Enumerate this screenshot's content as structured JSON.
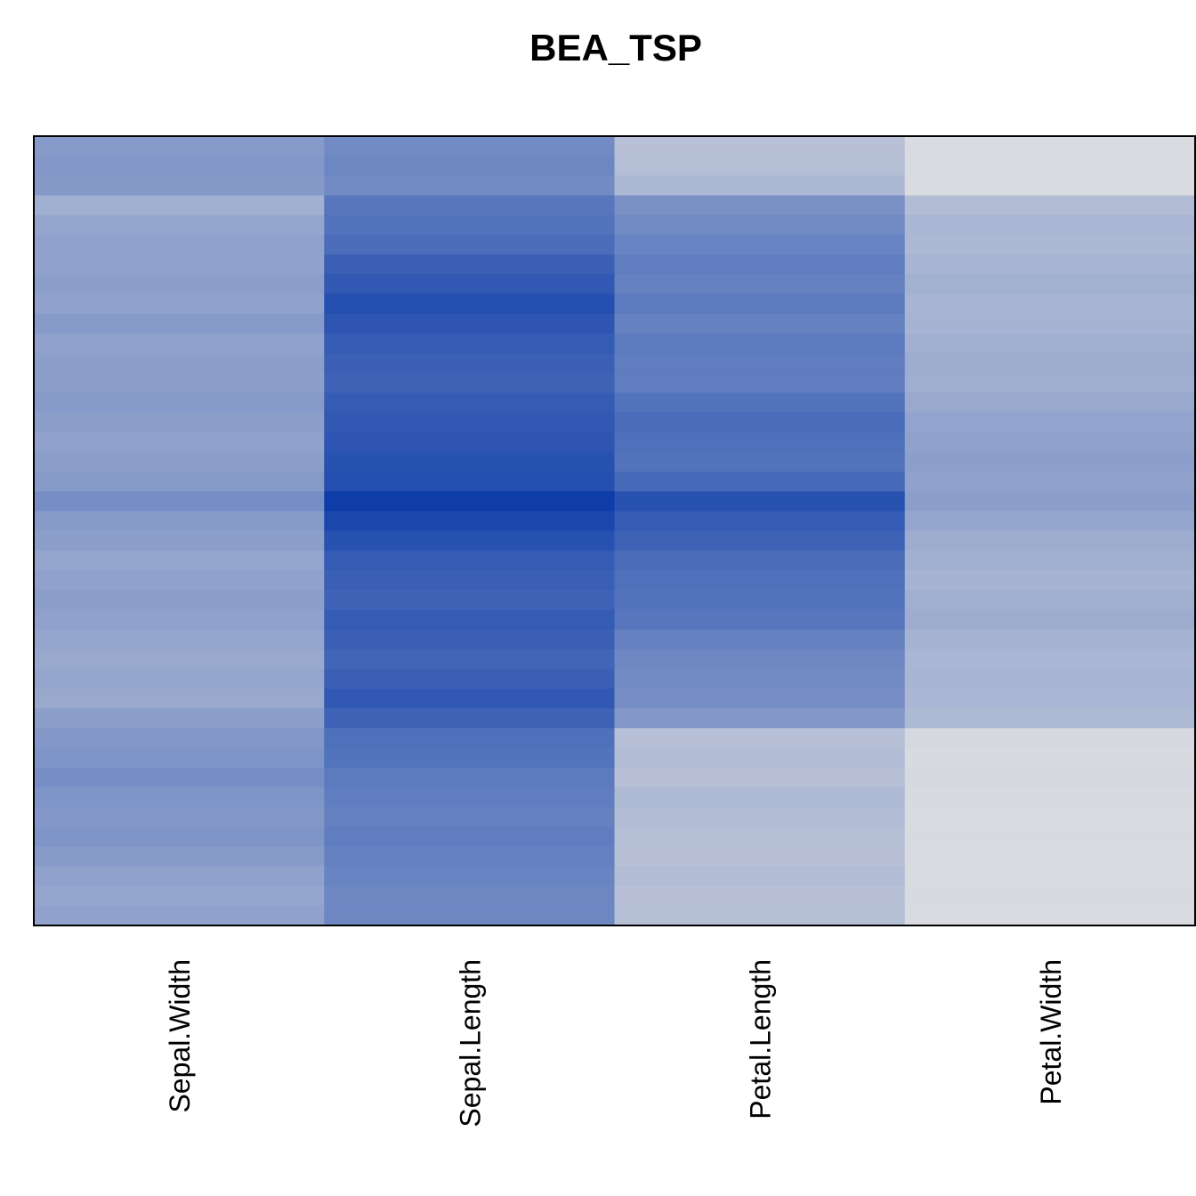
{
  "chart_data": {
    "type": "heatmap",
    "title": "BEA_TSP",
    "columns": [
      "Sepal.Width",
      "Sepal.Length",
      "Petal.Length",
      "Petal.Width"
    ],
    "color_scale": {
      "low": "#e2e2e2",
      "high": "#0a3aa8"
    },
    "intensity_range": [
      0,
      1
    ],
    "rows": 40,
    "matrix": [
      [
        0.42,
        0.52,
        0.2,
        0.04
      ],
      [
        0.44,
        0.54,
        0.21,
        0.04
      ],
      [
        0.43,
        0.52,
        0.25,
        0.04
      ],
      [
        0.3,
        0.64,
        0.48,
        0.22
      ],
      [
        0.36,
        0.66,
        0.52,
        0.26
      ],
      [
        0.38,
        0.7,
        0.56,
        0.25
      ],
      [
        0.38,
        0.78,
        0.6,
        0.27
      ],
      [
        0.4,
        0.82,
        0.58,
        0.29
      ],
      [
        0.38,
        0.88,
        0.62,
        0.27
      ],
      [
        0.42,
        0.84,
        0.58,
        0.28
      ],
      [
        0.38,
        0.8,
        0.62,
        0.3
      ],
      [
        0.4,
        0.78,
        0.6,
        0.32
      ],
      [
        0.4,
        0.76,
        0.6,
        0.31
      ],
      [
        0.42,
        0.8,
        0.66,
        0.34
      ],
      [
        0.4,
        0.82,
        0.7,
        0.37
      ],
      [
        0.38,
        0.84,
        0.68,
        0.38
      ],
      [
        0.4,
        0.86,
        0.66,
        0.4
      ],
      [
        0.42,
        0.88,
        0.72,
        0.38
      ],
      [
        0.5,
        0.98,
        0.86,
        0.4
      ],
      [
        0.42,
        0.92,
        0.8,
        0.36
      ],
      [
        0.4,
        0.86,
        0.76,
        0.32
      ],
      [
        0.36,
        0.8,
        0.7,
        0.3
      ],
      [
        0.38,
        0.78,
        0.68,
        0.28
      ],
      [
        0.4,
        0.76,
        0.66,
        0.3
      ],
      [
        0.38,
        0.8,
        0.64,
        0.32
      ],
      [
        0.36,
        0.78,
        0.58,
        0.28
      ],
      [
        0.34,
        0.74,
        0.54,
        0.26
      ],
      [
        0.36,
        0.78,
        0.52,
        0.27
      ],
      [
        0.34,
        0.82,
        0.5,
        0.26
      ],
      [
        0.4,
        0.76,
        0.44,
        0.24
      ],
      [
        0.44,
        0.68,
        0.2,
        0.06
      ],
      [
        0.46,
        0.66,
        0.22,
        0.05
      ],
      [
        0.5,
        0.62,
        0.2,
        0.06
      ],
      [
        0.46,
        0.6,
        0.24,
        0.05
      ],
      [
        0.44,
        0.58,
        0.22,
        0.04
      ],
      [
        0.46,
        0.6,
        0.21,
        0.05
      ],
      [
        0.42,
        0.58,
        0.2,
        0.04
      ],
      [
        0.38,
        0.56,
        0.22,
        0.04
      ],
      [
        0.36,
        0.54,
        0.2,
        0.05
      ],
      [
        0.38,
        0.54,
        0.21,
        0.04
      ]
    ]
  }
}
